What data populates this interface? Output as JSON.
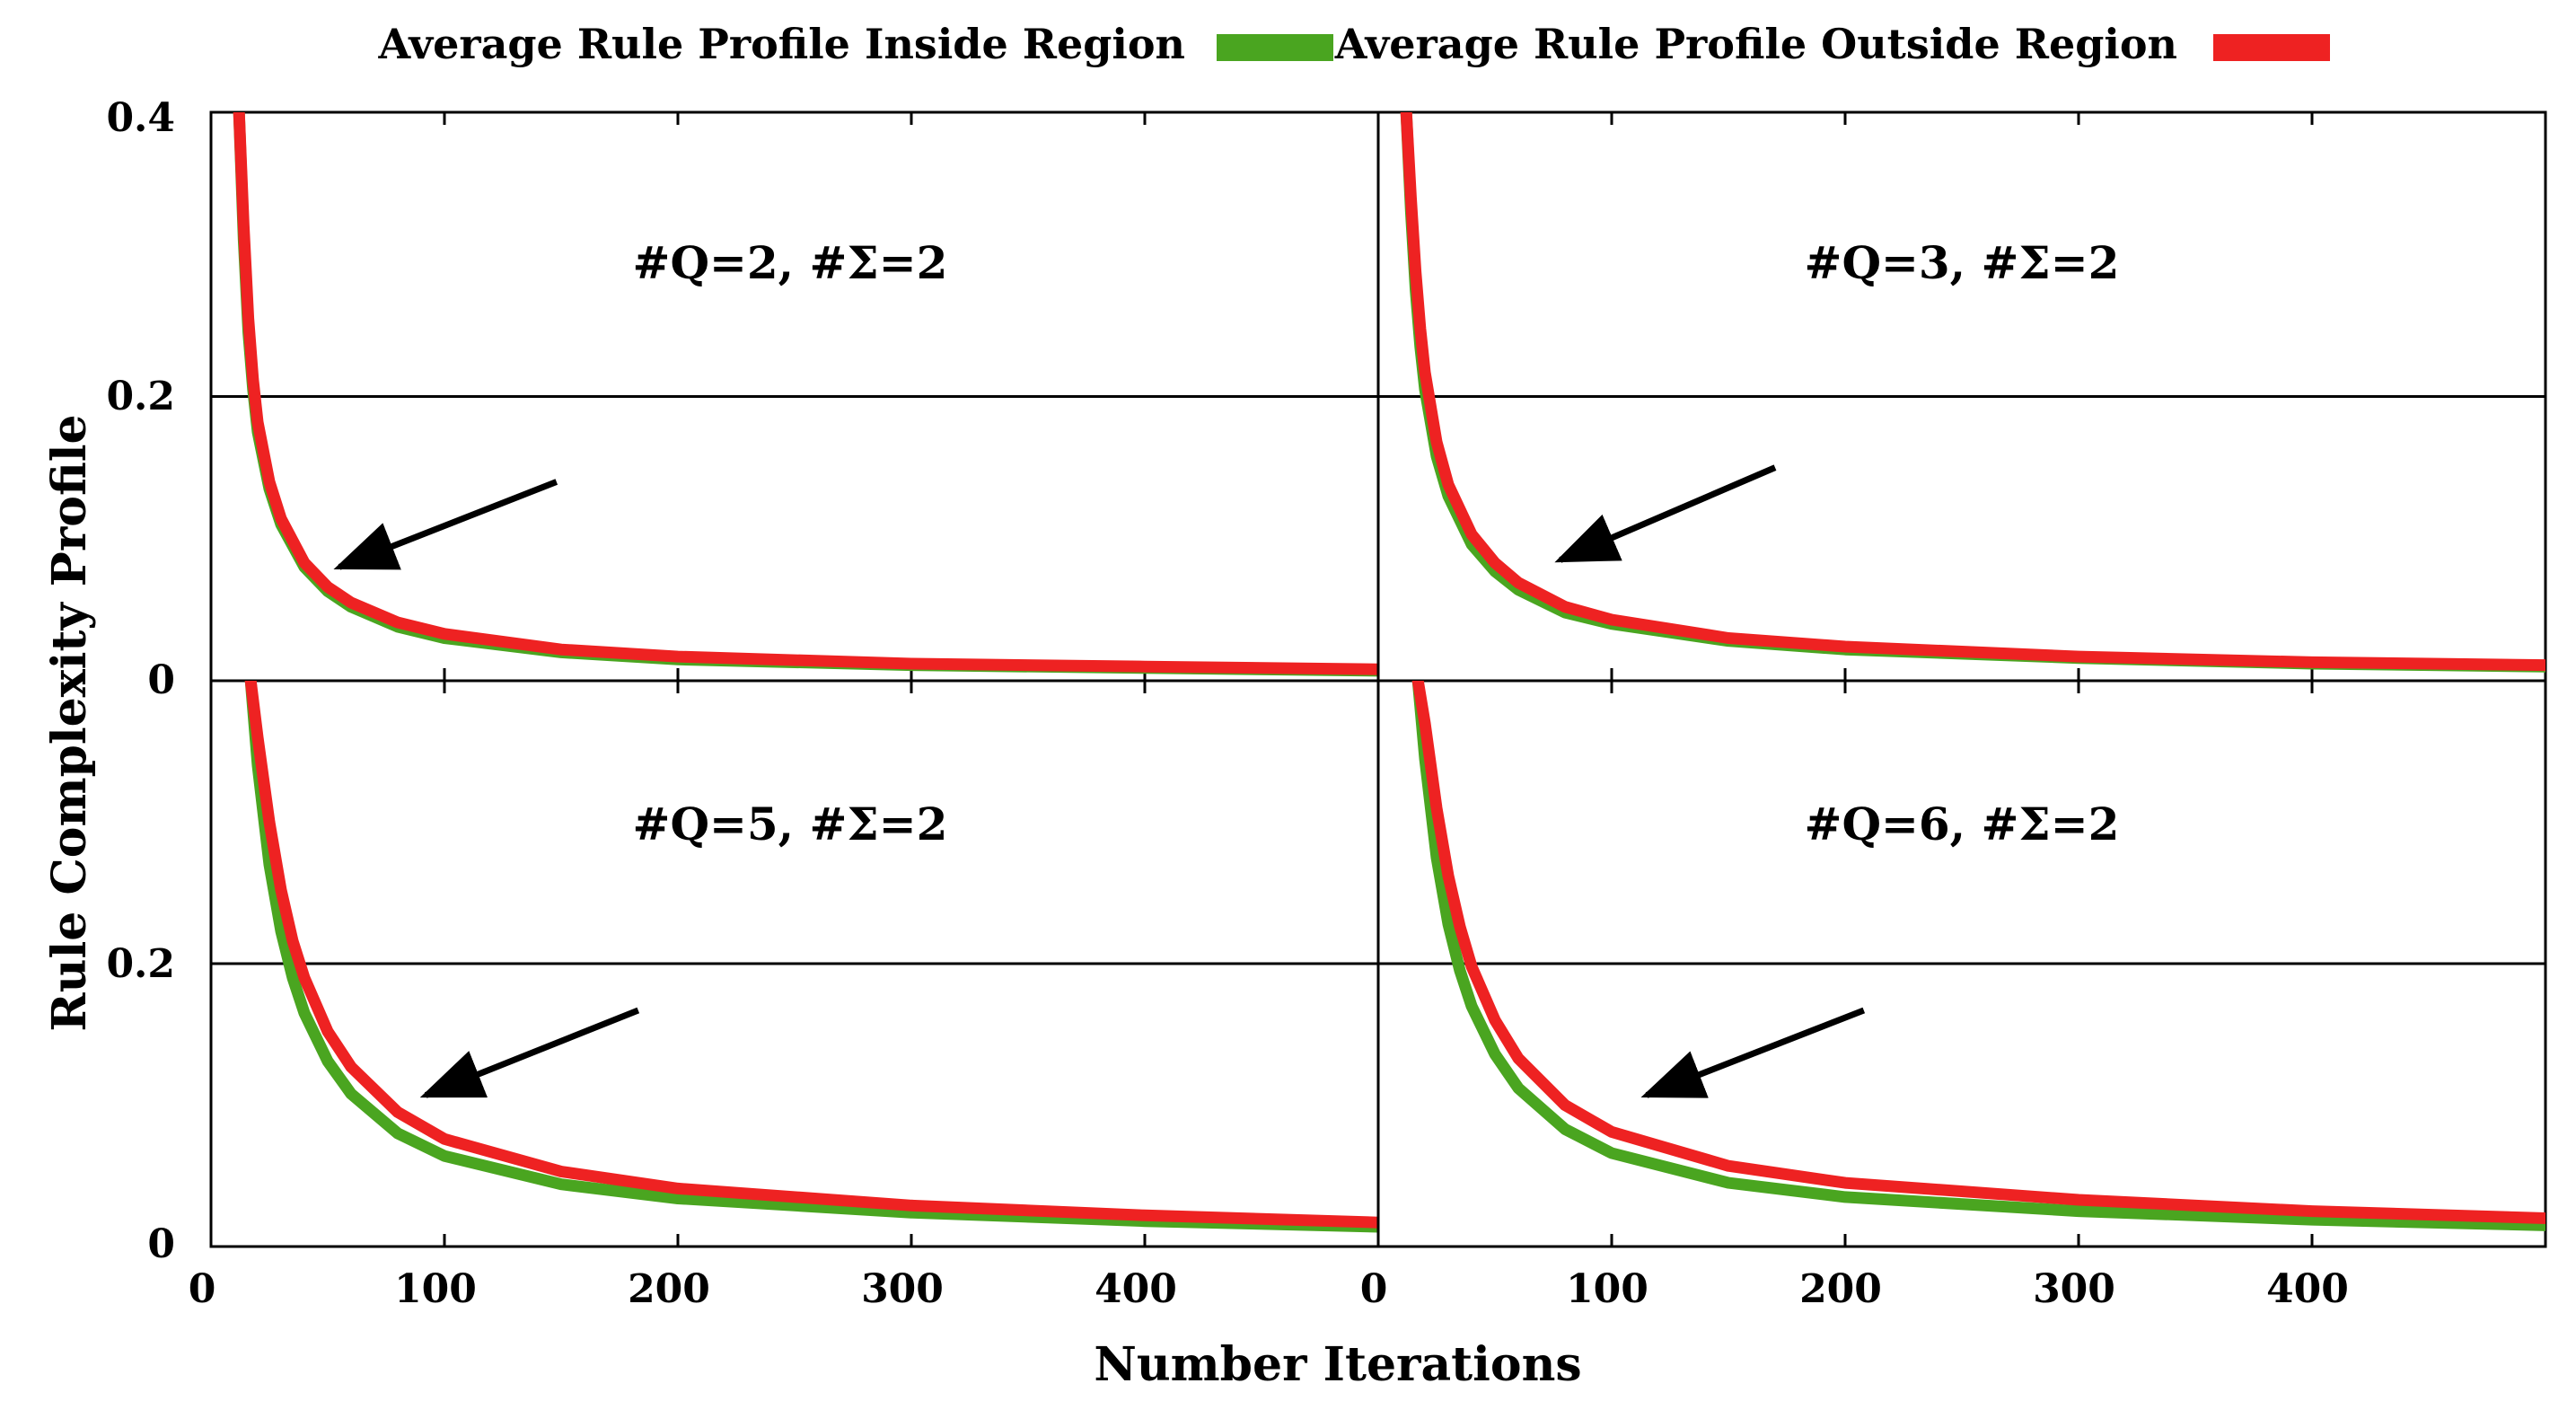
{
  "chart_data": {
    "type": "line",
    "layout": "2x2 grid of panels sharing axes",
    "xlabel": "Number Iterations",
    "ylabel": "Rule Complexity Profile",
    "xlim": [
      0,
      500
    ],
    "ylim": [
      0,
      0.4
    ],
    "y_ticks_top_row": [
      "0.4",
      "0.2",
      "0"
    ],
    "y_ticks_bottom_row": [
      "0.2",
      "0"
    ],
    "x_ticks_left_col": [
      "0",
      "100",
      "200",
      "300",
      "400"
    ],
    "x_ticks_right_col": [
      "0",
      "100",
      "200",
      "300",
      "400"
    ],
    "grid": "horizontal lines at 0.2",
    "legend": {
      "position": "top",
      "entries": [
        {
          "label": "Average Rule Profile Inside Region",
          "color": "#4aa520"
        },
        {
          "label": "Average Rule Profile Outside Region",
          "color": "#ee2222"
        }
      ]
    },
    "arrow_color": "#000000",
    "panels": [
      {
        "title": "#Q=2, #Σ=2",
        "x_start": 12,
        "arrow": {
          "from": [
            148,
            0.14
          ],
          "to": [
            55,
            0.08
          ]
        },
        "series": [
          {
            "name": "Average Rule Profile Inside Region",
            "color": "#4aa520",
            "x": [
              12,
              14,
              16,
              18,
              20,
              25,
              30,
              40,
              50,
              60,
              80,
              100,
              150,
              200,
              300,
              400,
              500
            ],
            "y": [
              0.4,
              0.31,
              0.245,
              0.205,
              0.175,
              0.135,
              0.11,
              0.08,
              0.063,
              0.052,
              0.038,
              0.03,
              0.02,
              0.015,
              0.011,
              0.009,
              0.007
            ]
          },
          {
            "name": "Average Rule Profile Outside Region",
            "color": "#ee2222",
            "x": [
              12,
              14,
              16,
              18,
              20,
              25,
              30,
              40,
              50,
              60,
              80,
              100,
              150,
              200,
              300,
              400,
              500
            ],
            "y": [
              0.4,
              0.32,
              0.255,
              0.212,
              0.182,
              0.14,
              0.114,
              0.083,
              0.066,
              0.055,
              0.041,
              0.033,
              0.022,
              0.017,
              0.012,
              0.01,
              0.008
            ]
          }
        ]
      },
      {
        "title": "#Q=3, #Σ=2",
        "x_start": 12,
        "arrow": {
          "from": [
            170,
            0.15
          ],
          "to": [
            78,
            0.085
          ]
        },
        "series": [
          {
            "name": "Average Rule Profile Inside Region",
            "color": "#4aa520",
            "x": [
              12,
              14,
              16,
              18,
              20,
              25,
              30,
              40,
              50,
              60,
              80,
              100,
              150,
              200,
              300,
              400,
              500
            ],
            "y": [
              0.4,
              0.33,
              0.275,
              0.235,
              0.205,
              0.158,
              0.13,
              0.096,
              0.077,
              0.064,
              0.048,
              0.04,
              0.028,
              0.022,
              0.016,
              0.012,
              0.01
            ]
          },
          {
            "name": "Average Rule Profile Outside Region",
            "color": "#ee2222",
            "x": [
              12,
              14,
              16,
              18,
              20,
              25,
              30,
              40,
              50,
              60,
              80,
              100,
              150,
              200,
              300,
              400,
              500
            ],
            "y": [
              0.4,
              0.34,
              0.288,
              0.248,
              0.217,
              0.168,
              0.138,
              0.103,
              0.083,
              0.069,
              0.052,
              0.043,
              0.03,
              0.024,
              0.017,
              0.013,
              0.011
            ]
          }
        ]
      },
      {
        "title": "#Q=5, #Σ=2",
        "x_start": 17,
        "arrow": {
          "from": [
            183,
            0.167
          ],
          "to": [
            92,
            0.107
          ]
        },
        "series": [
          {
            "name": "Average Rule Profile Inside Region",
            "color": "#4aa520",
            "x": [
              17,
              20,
              25,
              30,
              35,
              40,
              50,
              60,
              80,
              100,
              150,
              200,
              300,
              400,
              500
            ],
            "y": [
              0.4,
              0.34,
              0.27,
              0.223,
              0.19,
              0.165,
              0.131,
              0.108,
              0.08,
              0.064,
              0.044,
              0.034,
              0.024,
              0.018,
              0.014
            ]
          },
          {
            "name": "Average Rule Profile Outside Region",
            "color": "#ee2222",
            "x": [
              17,
              20,
              25,
              30,
              35,
              40,
              50,
              60,
              80,
              100,
              150,
              200,
              300,
              400,
              500
            ],
            "y": [
              0.4,
              0.36,
              0.3,
              0.252,
              0.216,
              0.19,
              0.152,
              0.127,
              0.095,
              0.076,
              0.053,
              0.041,
              0.029,
              0.022,
              0.017
            ]
          }
        ]
      },
      {
        "title": "#Q=6, #Σ=2",
        "x_start": 17,
        "arrow": {
          "from": [
            208,
            0.167
          ],
          "to": [
            115,
            0.107
          ]
        },
        "series": [
          {
            "name": "Average Rule Profile Inside Region",
            "color": "#4aa520",
            "x": [
              17,
              20,
              25,
              30,
              35,
              40,
              50,
              60,
              80,
              100,
              150,
              200,
              300,
              400,
              500
            ],
            "y": [
              0.4,
              0.345,
              0.275,
              0.228,
              0.195,
              0.17,
              0.136,
              0.112,
              0.083,
              0.066,
              0.045,
              0.035,
              0.025,
              0.019,
              0.015
            ]
          },
          {
            "name": "Average Rule Profile Outside Region",
            "color": "#ee2222",
            "x": [
              17,
              20,
              25,
              30,
              35,
              40,
              50,
              60,
              80,
              100,
              150,
              200,
              300,
              400,
              500
            ],
            "y": [
              0.4,
              0.37,
              0.31,
              0.262,
              0.226,
              0.198,
              0.16,
              0.133,
              0.1,
              0.081,
              0.057,
              0.045,
              0.033,
              0.025,
              0.02
            ]
          }
        ]
      }
    ]
  }
}
